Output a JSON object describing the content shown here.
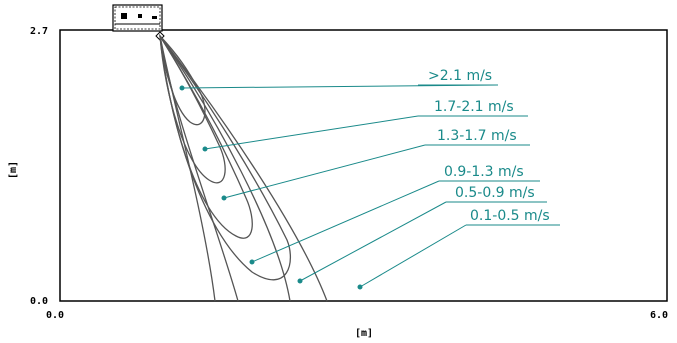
{
  "x_axis": {
    "label": "[m]",
    "min_label": "0.0",
    "max_label": "6.0"
  },
  "y_axis": {
    "label": "[m]",
    "min_label": "0.0",
    "max_label": "2.7"
  },
  "zones": [
    {
      "label": ">2.1 m/s"
    },
    {
      "label": "1.7-2.1 m/s"
    },
    {
      "label": "1.3-1.7 m/s"
    },
    {
      "label": "0.9-1.3 m/s"
    },
    {
      "label": "0.5-0.9 m/s"
    },
    {
      "label": "0.1-0.5 m/s"
    }
  ],
  "colors": {
    "frame": "#000000",
    "contour": "#555555",
    "leader": "#1a8a8a"
  }
}
